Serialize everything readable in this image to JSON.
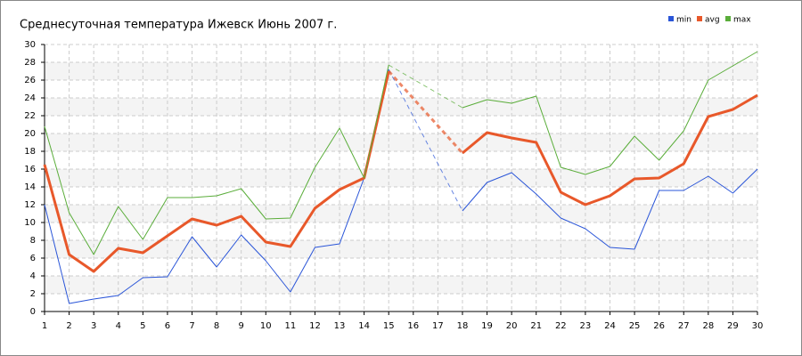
{
  "chart_data": {
    "type": "line",
    "title": "Среднесуточная температура Ижевск  Июнь 2007 г.",
    "categories": [
      "1",
      "2",
      "3",
      "4",
      "5",
      "6",
      "7",
      "8",
      "9",
      "10",
      "11",
      "12",
      "13",
      "14",
      "15",
      "16",
      "17",
      "18",
      "19",
      "20",
      "21",
      "22",
      "23",
      "24",
      "25",
      "26",
      "27",
      "28",
      "29",
      "30"
    ],
    "series": [
      {
        "name": "min",
        "color": "#2a55d8",
        "width": 1,
        "values": [
          12,
          0.9,
          1.4,
          1.8,
          3.8,
          3.9,
          8.4,
          5.0,
          8.6,
          5.7,
          2.2,
          7.2,
          7.6,
          15.0,
          27.2,
          null,
          null,
          11.3,
          14.5,
          15.6,
          13.2,
          10.5,
          9.3,
          7.2,
          7.0,
          13.6,
          13.6,
          15.2,
          13.3,
          16.0
        ]
      },
      {
        "name": "avg",
        "color": "#e8582a",
        "width": 3,
        "values": [
          16.5,
          6.4,
          4.5,
          7.1,
          6.6,
          8.5,
          10.4,
          9.7,
          10.7,
          7.8,
          7.3,
          11.6,
          13.7,
          15.0,
          27.0,
          null,
          null,
          17.8,
          20.1,
          19.5,
          19.0,
          13.4,
          12.0,
          13.0,
          14.9,
          15.0,
          16.6,
          21.9,
          22.7,
          24.3
        ]
      },
      {
        "name": "max",
        "color": "#5aad3a",
        "width": 1,
        "values": [
          20.8,
          11.1,
          6.4,
          11.8,
          8.1,
          12.8,
          12.8,
          13.0,
          13.8,
          10.4,
          10.5,
          16.2,
          20.6,
          15.0,
          27.7,
          null,
          null,
          22.9,
          23.8,
          23.4,
          24.2,
          16.2,
          15.4,
          16.3,
          19.7,
          17.0,
          20.3,
          26.0,
          27.6,
          29.2
        ]
      }
    ],
    "ylim": [
      0,
      30
    ],
    "yticks": [
      0,
      2,
      4,
      6,
      8,
      10,
      12,
      14,
      16,
      18,
      20,
      22,
      24,
      26,
      28,
      30
    ],
    "grid": true,
    "legend": "top-right"
  }
}
